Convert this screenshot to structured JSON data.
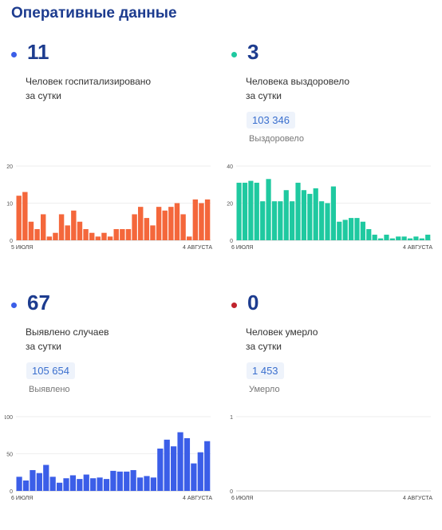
{
  "header": {
    "title": "Оперативные данные"
  },
  "colors": {
    "hospitalized": "#f4673b",
    "recovered": "#1fc9a0",
    "cases": "#3b5ee8",
    "deaths": "#c0232c",
    "dot_blue": "#3b5ee8",
    "title": "#1d3c8f"
  },
  "panels": [
    {
      "number": "11",
      "line1": "Человек госпитализировано",
      "line2": "за сутки",
      "total": "",
      "total_label": ""
    },
    {
      "number": "3",
      "line1": "Человека выздоровело",
      "line2": "за сутки",
      "total": "103 346",
      "total_label": "Выздоровело"
    },
    {
      "number": "67",
      "line1": "Выявлено случаев",
      "line2": "за сутки",
      "total": "105 654",
      "total_label": "Выявлено"
    },
    {
      "number": "0",
      "line1": "Человек умерло",
      "line2": "за сутки",
      "total": "1 453",
      "total_label": "Умерло"
    }
  ],
  "chart_data": [
    {
      "type": "bar",
      "color": "#f4673b",
      "x_start_label": "5 ИЮЛЯ",
      "x_end_label": "4 АВГУСТА",
      "ylim": [
        0,
        20
      ],
      "yticks": [
        0,
        10,
        20
      ],
      "values": [
        12,
        13,
        5,
        3,
        7,
        1,
        2,
        7,
        4,
        8,
        5,
        3,
        2,
        1,
        2,
        1,
        3,
        3,
        3,
        7,
        9,
        6,
        4,
        9,
        8,
        9,
        10,
        7,
        1,
        11,
        10,
        11
      ]
    },
    {
      "type": "bar",
      "color": "#1fc9a0",
      "x_start_label": "6 ИЮЛЯ",
      "x_end_label": "4 АВГУСТА",
      "ylim": [
        0,
        40
      ],
      "yticks": [
        0,
        20,
        40
      ],
      "values": [
        31,
        31,
        32,
        31,
        21,
        33,
        21,
        21,
        27,
        21,
        31,
        27,
        25,
        28,
        21,
        20,
        29,
        10,
        11,
        12,
        12,
        10,
        6,
        3,
        1,
        3,
        1,
        2,
        2,
        1,
        2,
        1,
        3
      ]
    },
    {
      "type": "bar",
      "color": "#3b5ee8",
      "x_start_label": "6 ИЮЛЯ",
      "x_end_label": "4 АВГУСТА",
      "ylim": [
        0,
        100
      ],
      "yticks": [
        0,
        50,
        100
      ],
      "values": [
        19,
        14,
        28,
        24,
        35,
        19,
        11,
        17,
        21,
        16,
        22,
        17,
        18,
        16,
        27,
        26,
        26,
        28,
        18,
        20,
        18,
        57,
        69,
        60,
        79,
        71,
        37,
        52,
        67
      ]
    },
    {
      "type": "bar",
      "color": "#c0232c",
      "x_start_label": "6 ИЮЛЯ",
      "x_end_label": "4 АВГУСТА",
      "ylim": [
        0,
        1
      ],
      "yticks": [
        0,
        1
      ],
      "values": []
    }
  ]
}
